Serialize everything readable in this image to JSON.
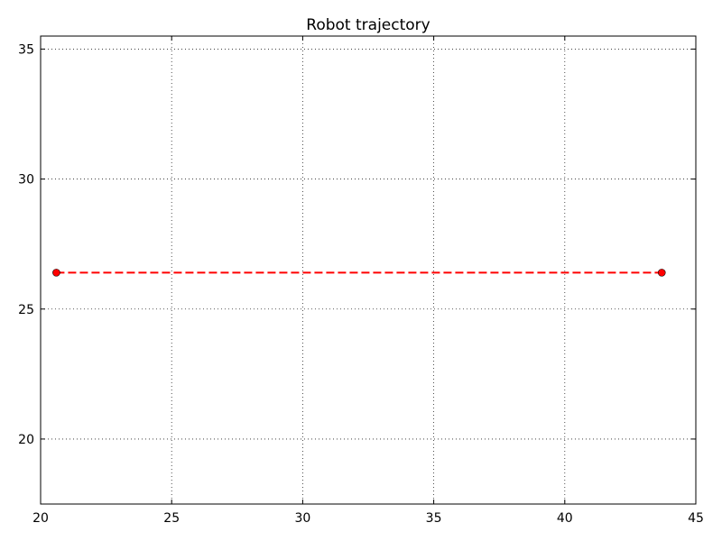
{
  "chart_data": {
    "type": "line",
    "title": "Robot trajectory",
    "xlabel": "",
    "ylabel": "",
    "xlim": [
      20,
      45
    ],
    "ylim": [
      17.5,
      35.5
    ],
    "xticks": [
      20,
      25,
      30,
      35,
      40,
      45
    ],
    "yticks": [
      20,
      25,
      30,
      35
    ],
    "grid": true,
    "series": [
      {
        "x": [
          20.6,
          43.7
        ],
        "y": [
          26.4,
          26.4
        ],
        "color": "#ff0000",
        "line_style": "dashed",
        "marker": "circle"
      }
    ]
  }
}
